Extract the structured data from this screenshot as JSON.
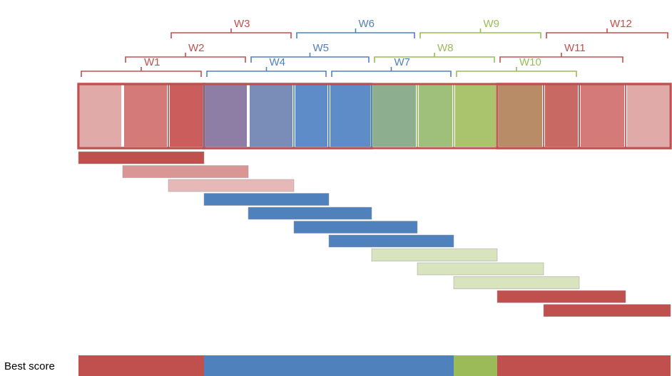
{
  "colors": {
    "red": "#c0504d",
    "blue": "#4f81bd",
    "green": "#9bbb59"
  },
  "windows": [
    {
      "label": "W1",
      "color": "red",
      "start": 0,
      "end": 3
    },
    {
      "label": "W2",
      "color": "red",
      "start": 1,
      "end": 4
    },
    {
      "label": "W3",
      "color": "red",
      "start": 2,
      "end": 5
    },
    {
      "label": "W4",
      "color": "blue",
      "start": 3,
      "end": 6
    },
    {
      "label": "W5",
      "color": "blue",
      "start": 4,
      "end": 7
    },
    {
      "label": "W6",
      "color": "blue",
      "start": 5,
      "end": 8
    },
    {
      "label": "W7",
      "color": "blue",
      "start": 6,
      "end": 9
    },
    {
      "label": "W8",
      "color": "green",
      "start": 7,
      "end": 10
    },
    {
      "label": "W9",
      "color": "green",
      "start": 8,
      "end": 11
    },
    {
      "label": "W10",
      "color": "green",
      "start": 9,
      "end": 12
    },
    {
      "label": "W11",
      "color": "red",
      "start": 10,
      "end": 13
    },
    {
      "label": "W12",
      "color": "red",
      "start": 11,
      "end": 14
    }
  ],
  "bars": [
    {
      "start": 0,
      "end": 3,
      "color": "red",
      "opacity": 1.0
    },
    {
      "start": 1,
      "end": 4,
      "color": "red",
      "opacity": 0.6
    },
    {
      "start": 2,
      "end": 5,
      "color": "red",
      "opacity": 0.4
    },
    {
      "start": 3,
      "end": 6,
      "color": "blue",
      "opacity": 1.0
    },
    {
      "start": 4,
      "end": 7,
      "color": "blue",
      "opacity": 1.0
    },
    {
      "start": 5,
      "end": 8,
      "color": "blue",
      "opacity": 1.0
    },
    {
      "start": 6,
      "end": 9,
      "color": "blue",
      "opacity": 1.0
    },
    {
      "start": 7,
      "end": 10,
      "color": "green",
      "opacity": 0.4
    },
    {
      "start": 8,
      "end": 11,
      "color": "green",
      "opacity": 0.4
    },
    {
      "start": 9,
      "end": 12,
      "color": "green",
      "opacity": 0.4
    },
    {
      "start": 10,
      "end": 13,
      "color": "red",
      "opacity": 1.0
    },
    {
      "start": 11,
      "end": 14,
      "color": "red",
      "opacity": 1.0
    }
  ],
  "cells": [
    {
      "color": "#e0aaa9"
    },
    {
      "color": "#d47a79"
    },
    {
      "color": "#cb5e5c"
    },
    {
      "color": "#8e7ea6"
    },
    {
      "color": "#7a8cb8"
    },
    {
      "color": "#5e8cc8"
    },
    {
      "color": "#5e8cc8"
    },
    {
      "color": "#8eaf8f"
    },
    {
      "color": "#9fc07a"
    },
    {
      "color": "#a9c46c"
    },
    {
      "color": "#b88c66"
    },
    {
      "color": "#c86a63"
    },
    {
      "color": "#d47a79"
    },
    {
      "color": "#e0aaa9"
    }
  ],
  "best_score": {
    "label": "Best score",
    "segments": [
      {
        "start": 0,
        "end": 3,
        "color": "red"
      },
      {
        "start": 3,
        "end": 9,
        "color": "blue"
      },
      {
        "start": 9,
        "end": 10,
        "color": "green"
      },
      {
        "start": 10,
        "end": 14,
        "color": "red"
      }
    ]
  }
}
